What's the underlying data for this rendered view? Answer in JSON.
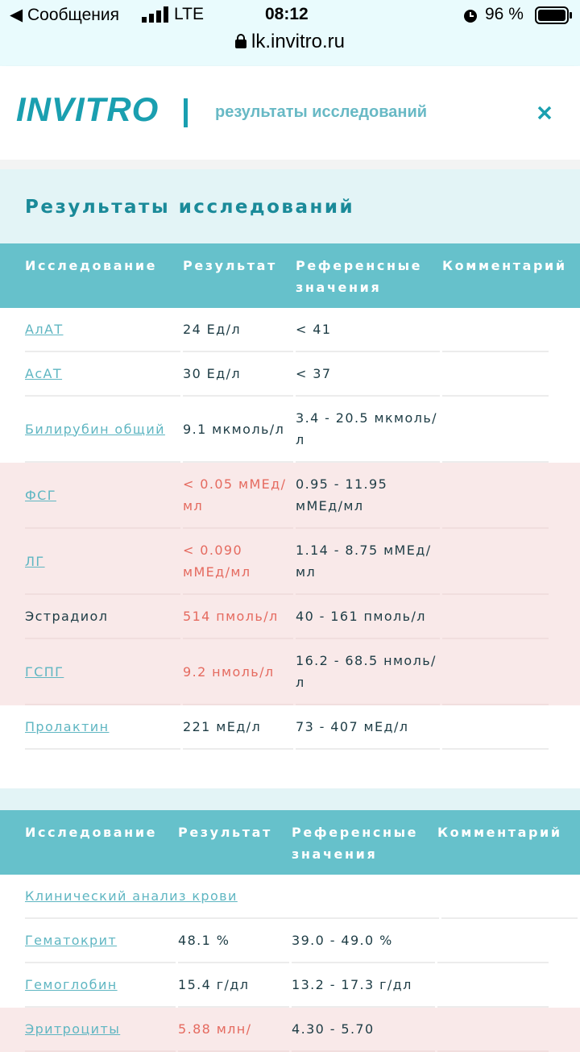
{
  "status": {
    "back": "Сообщения",
    "carrier": "LTE",
    "time": "08:12",
    "battery": "96 %",
    "url": "lk.invitro.ru"
  },
  "header": {
    "logo": "INVITRO",
    "subtitle": "результаты исследований"
  },
  "section": {
    "title": "Результаты исследований"
  },
  "table1": {
    "columns": [
      "Исследование",
      "Результат",
      "Референсные значения",
      "Комментарий"
    ],
    "rows": [
      {
        "name": "АлАТ",
        "result": "24 Ед/л",
        "ref": "< 41",
        "link": true,
        "abnormal": false
      },
      {
        "name": "АсАТ",
        "result": "30 Ед/л",
        "ref": "< 37",
        "link": true,
        "abnormal": false
      },
      {
        "name": "Билирубин общий",
        "result": "9.1 мкмоль/л",
        "ref": "3.4 - 20.5 мкмоль/л",
        "link": true,
        "abnormal": false
      },
      {
        "name": "ФСГ",
        "result": "< 0.05 мМЕд/мл",
        "ref": "0.95 - 11.95 мМЕд/мл",
        "link": true,
        "abnormal": true
      },
      {
        "name": "ЛГ",
        "result": "< 0.090 мМЕд/мл",
        "ref": "1.14 - 8.75 мМЕд/мл",
        "link": true,
        "abnormal": true
      },
      {
        "name": "Эстрадиол",
        "result": "514 пмоль/л",
        "ref": "40 - 161 пмоль/л",
        "link": false,
        "abnormal": true
      },
      {
        "name": "ГСПГ",
        "result": "9.2 нмоль/л",
        "ref": "16.2 - 68.5 нмоль/л",
        "link": true,
        "abnormal": true
      },
      {
        "name": "Пролактин",
        "result": "221 мЕд/л",
        "ref": "73 - 407 мЕд/л",
        "link": true,
        "abnormal": false
      }
    ]
  },
  "table2": {
    "columns": [
      "Исследование",
      "Результат",
      "Референсные значения",
      "Комментарий"
    ],
    "group": "Клинический анализ крови",
    "rows": [
      {
        "name": "Гематокрит",
        "result": "48.1 %",
        "ref": "39.0 - 49.0 %",
        "link": true,
        "abnormal": false
      },
      {
        "name": "Гемоглобин",
        "result": "15.4 г/дл",
        "ref": "13.2 - 17.3 г/дл",
        "link": true,
        "abnormal": false
      },
      {
        "name": "Эритроциты",
        "result": "5.88 млн/",
        "ref": "4.30 - 5.70",
        "link": true,
        "abnormal": true
      }
    ]
  }
}
